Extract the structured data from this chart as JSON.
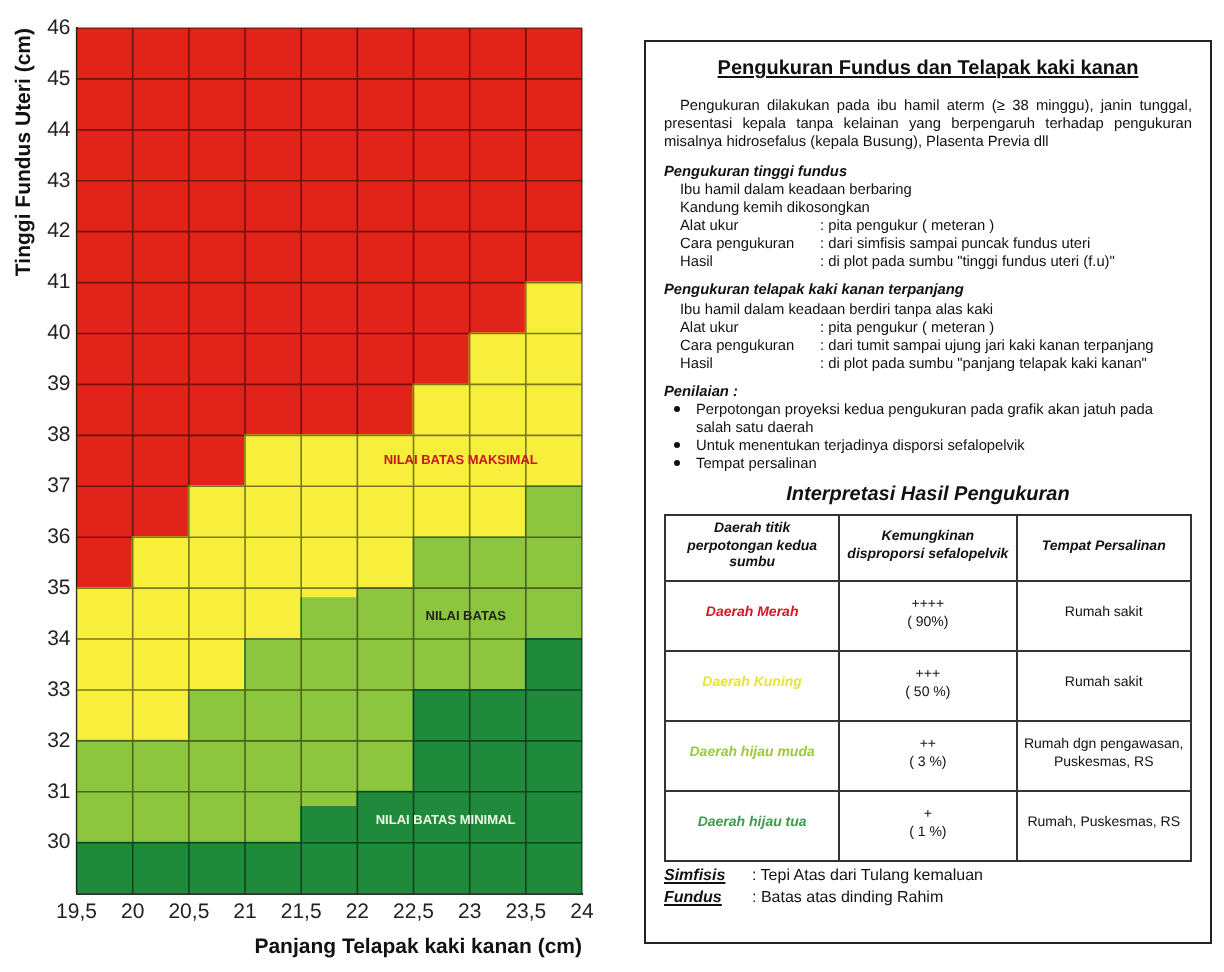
{
  "chart_data": [
    {
      "type": "area",
      "xlabel": "Panjang Telapak kaki kanan (cm)",
      "ylabel": "Tinggi Fundus Uteri (cm)",
      "x": [
        19.5,
        20,
        20,
        20.5,
        20.5,
        21,
        21,
        21.5,
        21.5,
        22,
        22,
        22.5,
        22.5,
        23,
        23,
        23.5,
        23.5,
        24
      ],
      "xlim": [
        19.5,
        24
      ],
      "xticks": [
        {
          "value": 19.5,
          "label": "19,5"
        },
        20,
        {
          "value": 20.5,
          "label": "20,5"
        },
        21,
        {
          "value": 21.5,
          "label": "21,5"
        },
        22,
        {
          "value": 22.5,
          "label": "22,5"
        },
        23,
        {
          "value": 23.5,
          "label": "23,5"
        },
        24
      ],
      "ylim": [
        29,
        46
      ],
      "yticks": [
        30,
        31,
        32,
        33,
        34,
        35,
        36,
        37,
        38,
        39,
        40,
        41,
        42,
        43,
        44,
        45,
        46
      ],
      "grid": true,
      "series": [
        {
          "color": "#1f8a3c",
          "values": [
            30,
            30,
            30,
            30,
            30,
            30,
            30,
            30,
            30.7,
            30.7,
            31,
            31,
            33,
            33,
            33,
            33,
            34,
            34
          ]
        },
        {
          "color": "#8cc63f",
          "values": [
            32,
            32,
            32,
            32,
            33,
            33,
            34,
            34,
            34.8,
            34.8,
            35,
            35,
            36,
            36,
            36,
            36,
            37,
            37
          ]
        },
        {
          "color": "#f7ef3c",
          "values": [
            35,
            35,
            36,
            36,
            37,
            37,
            38,
            38,
            38,
            38,
            38,
            38,
            39,
            39,
            40,
            40,
            41,
            41
          ]
        },
        {
          "color": "#e2231a",
          "values": [
            46,
            46,
            46,
            46,
            46,
            46,
            46,
            46,
            46,
            46,
            46,
            46,
            46,
            46,
            46,
            46,
            46,
            46
          ]
        }
      ],
      "annotations": [
        "NILAI BATAS MAKSIMAL",
        "NILAI BATAS",
        "NILAI BATAS MINIMAL"
      ]
    },
    {
      "type": "other",
      "title": "Pengukuran Fundus dan Telapak kaki kanan",
      "annotations": [
        "Pengukuran dilakukan pada ibu hamil aterm (≥ 38 minggu), janin tunggal, presentasi kepala tanpa kelainan yang berpengaruh terhadap pengukuran misalnya hidrosefalus (kepala Busung), Plasenta Previa dll",
        "Pengukuran tinggi fundus",
        "Ibu hamil dalam keadaan berbaring",
        "Kandung kemih dikosongkan",
        "Alat ukur : pita pengukur ( meteran )",
        "Cara pengukuran : dari simfisis sampai puncak fundus uteri",
        "Hasil : di plot pada sumbu \"tinggi fundus uteri (f.u)\"",
        "Pengukuran telapak kaki kanan terpanjang",
        "Ibu hamil dalam keadaan berdiri tanpa alas kaki",
        "Alat ukur : pita pengukur ( meteran )",
        "Cara pengukuran : dari tumit sampai ujung jari kaki kanan terpanjang",
        "Hasil : di plot pada sumbu \"panjang telapak kaki kanan\"",
        "Penilaian :",
        "Perpotongan proyeksi kedua pengukuran pada grafik akan jatuh pada salah satu daerah",
        "Untuk menentukan terjadinya disporsi sefalopelvik",
        "Tempat persalinan",
        "Interpretasi Hasil Pengukuran",
        "Daerah titik perpotongan kedua sumbu",
        "Kemungkinan disproporsi sefalopelvik",
        "Tempat Persalinan",
        "Daerah Merah",
        "++++\n( 90%)",
        "Rumah sakit",
        "Daerah Kuning",
        "+++\n( 50 %)",
        "Rumah sakit",
        "Daerah hijau muda",
        "++\n( 3 %)",
        "Rumah dgn pengawasan, Puskesmas, RS",
        "Daerah hijau tua",
        "+\n( 1 %)",
        "Rumah, Puskesmas, RS",
        "Simfisis : Tepi Atas dari Tulang kemaluan",
        "Fundus : Batas atas dinding Rahim"
      ]
    }
  ]
}
